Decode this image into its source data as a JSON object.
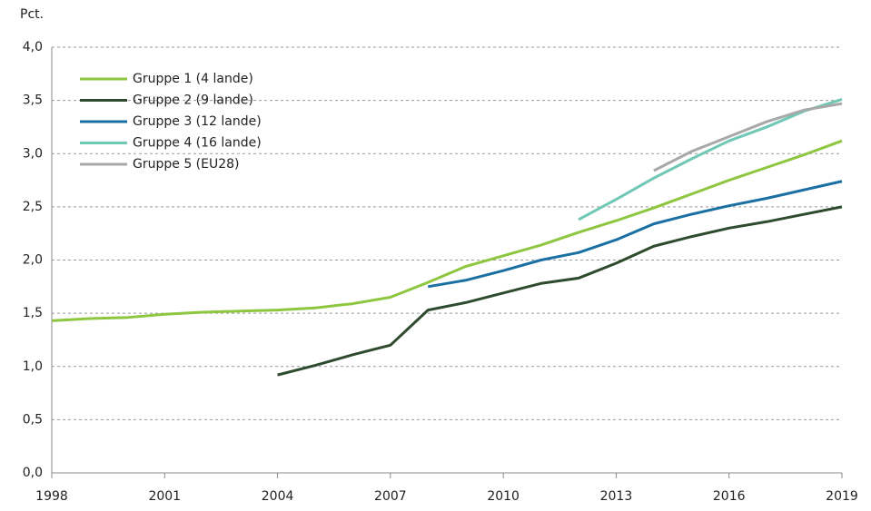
{
  "chart_data": {
    "type": "line",
    "ylabel": "Pct.",
    "x": [
      1998,
      1999,
      2000,
      2001,
      2002,
      2003,
      2004,
      2005,
      2006,
      2007,
      2008,
      2009,
      2010,
      2011,
      2012,
      2013,
      2014,
      2015,
      2016,
      2017,
      2018,
      2019
    ],
    "series": [
      {
        "name": "Gruppe 1 (4 lande)",
        "color": "#8dc63f",
        "values": [
          1.43,
          1.45,
          1.46,
          1.49,
          1.51,
          1.52,
          1.53,
          1.55,
          1.59,
          1.65,
          1.79,
          1.94,
          2.04,
          2.14,
          2.26,
          2.37,
          2.49,
          2.62,
          2.75,
          2.87,
          2.99,
          3.12
        ]
      },
      {
        "name": "Gruppe 2 (9 lande)",
        "color": "#2e4b2e",
        "values": [
          null,
          null,
          null,
          null,
          null,
          null,
          0.92,
          1.01,
          1.11,
          1.2,
          1.53,
          1.6,
          1.69,
          1.78,
          1.83,
          1.97,
          2.13,
          2.22,
          2.3,
          2.36,
          2.43,
          2.5
        ]
      },
      {
        "name": "Gruppe 3 (12 lande)",
        "color": "#1a6fa3",
        "values": [
          null,
          null,
          null,
          null,
          null,
          null,
          null,
          null,
          null,
          null,
          1.75,
          1.81,
          1.9,
          2.0,
          2.07,
          2.19,
          2.34,
          2.43,
          2.51,
          2.58,
          2.66,
          2.74
        ]
      },
      {
        "name": "Gruppe 4 (16 lande)",
        "color": "#6fc7b6",
        "values": [
          null,
          null,
          null,
          null,
          null,
          null,
          null,
          null,
          null,
          null,
          null,
          null,
          null,
          null,
          2.38,
          2.57,
          2.77,
          2.95,
          3.12,
          3.25,
          3.4,
          3.51
        ]
      },
      {
        "name": "Gruppe 5 (EU28)",
        "color": "#a8a8a8",
        "values": [
          null,
          null,
          null,
          null,
          null,
          null,
          null,
          null,
          null,
          null,
          null,
          null,
          null,
          null,
          null,
          null,
          2.84,
          3.02,
          3.16,
          3.3,
          3.41,
          3.47
        ]
      }
    ],
    "xlim": [
      1998,
      2019
    ],
    "xticks": [
      1998,
      2001,
      2004,
      2007,
      2010,
      2013,
      2016,
      2019
    ],
    "ylim": [
      0,
      4
    ],
    "yticks": [
      {
        "value": 0,
        "label": "0,0"
      },
      {
        "value": 0.5,
        "label": "0,5"
      },
      {
        "value": 1,
        "label": "1,0"
      },
      {
        "value": 1.5,
        "label": "1,5"
      },
      {
        "value": 2,
        "label": "2,0"
      },
      {
        "value": 2.5,
        "label": "2,5"
      },
      {
        "value": 3,
        "label": "3,0"
      },
      {
        "value": 3.5,
        "label": "3,5"
      },
      {
        "value": 4,
        "label": "4,0"
      }
    ],
    "grid": true,
    "legend": "upper left"
  }
}
